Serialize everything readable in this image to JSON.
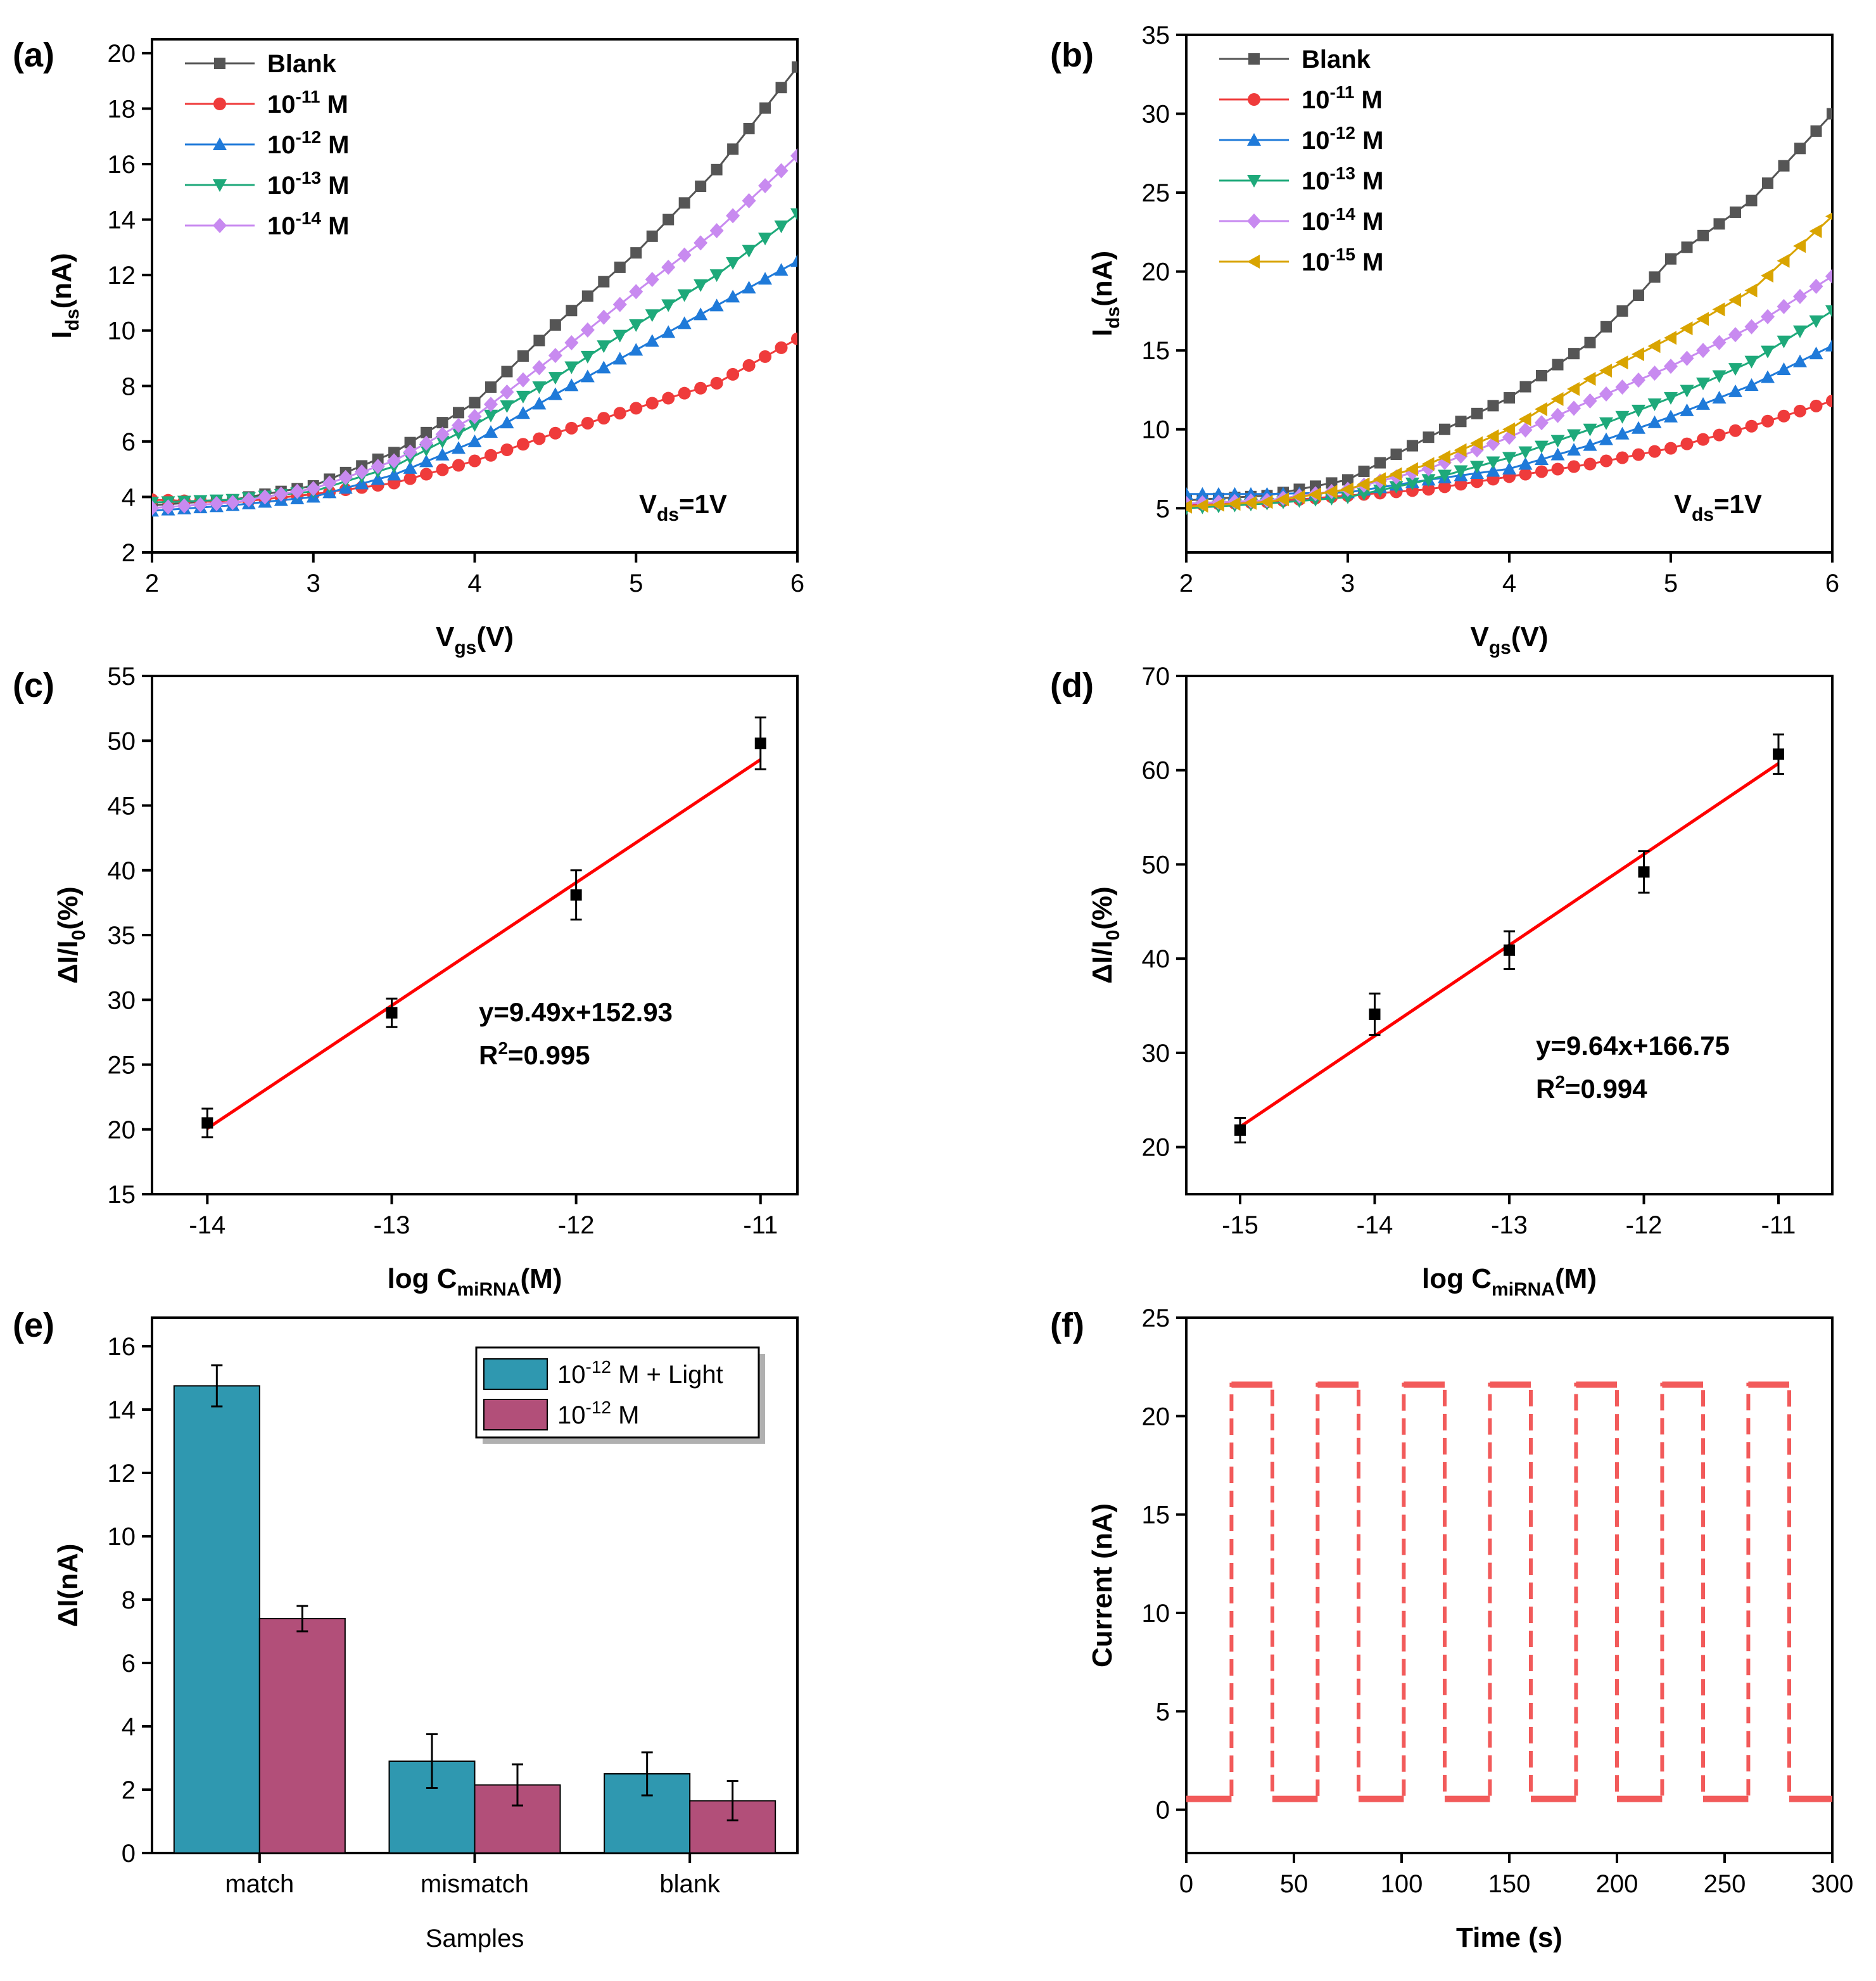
{
  "colors": {
    "blank": "#555555",
    "m11": "#ef3b3b",
    "m12": "#1f7ad9",
    "m13": "#1ea97a",
    "m14": "#c88af0",
    "m15": "#d9a400",
    "fit": "#ff0000",
    "bar_light": "#2f98b0",
    "bar_dark": "#b24f79",
    "marker": "#000000",
    "switch": "#f25a5a"
  },
  "chart_data": [
    {
      "panel": "(a)",
      "type": "line",
      "xlabel_main": "V",
      "xlabel_sub": "gs",
      "xlabel_unit": "(V)",
      "ylabel_main": "I",
      "ylabel_sub": "ds",
      "ylabel_unit": "(nA)",
      "xlim": [
        2,
        6
      ],
      "ylim": [
        2,
        20.5
      ],
      "xticks": [
        2,
        3,
        4,
        5,
        6
      ],
      "yticks": [
        2,
        4,
        6,
        8,
        10,
        12,
        14,
        16,
        18,
        20
      ],
      "annotation_main": "V",
      "annotation_sub": "ds",
      "annotation_tail": "=1V",
      "series": [
        {
          "key": "blank",
          "legend_base": "Blank",
          "legend_exp": "",
          "legend_tail": "",
          "marker": "square",
          "points": [
            [
              2,
              3.7
            ],
            [
              2.5,
              3.9
            ],
            [
              3,
              4.4
            ],
            [
              3.5,
              5.6
            ],
            [
              4,
              7.4
            ],
            [
              4.5,
              10.2
            ],
            [
              5,
              12.8
            ],
            [
              5.5,
              15.8
            ],
            [
              6,
              19.5
            ]
          ]
        },
        {
          "key": "m11",
          "legend_base": "10",
          "legend_exp": "-11",
          "legend_tail": " M",
          "marker": "circle",
          "points": [
            [
              2,
              3.9
            ],
            [
              2.5,
              3.8
            ],
            [
              3,
              4.1
            ],
            [
              3.5,
              4.5
            ],
            [
              4,
              5.3
            ],
            [
              4.5,
              6.3
            ],
            [
              5,
              7.2
            ],
            [
              5.5,
              8.1
            ],
            [
              6,
              9.7
            ]
          ]
        },
        {
          "key": "m12",
          "legend_base": "10",
          "legend_exp": "-12",
          "legend_tail": " M",
          "marker": "triangle-up",
          "points": [
            [
              2,
              3.5
            ],
            [
              2.5,
              3.7
            ],
            [
              3,
              4.0
            ],
            [
              3.5,
              4.8
            ],
            [
              4,
              6.0
            ],
            [
              4.5,
              7.7
            ],
            [
              5,
              9.3
            ],
            [
              5.5,
              10.9
            ],
            [
              6,
              12.5
            ]
          ]
        },
        {
          "key": "m13",
          "legend_base": "10",
          "legend_exp": "-13",
          "legend_tail": " M",
          "marker": "triangle-down",
          "points": [
            [
              2,
              3.8
            ],
            [
              2.5,
              3.9
            ],
            [
              3,
              4.2
            ],
            [
              3.5,
              5.1
            ],
            [
              4,
              6.6
            ],
            [
              4.5,
              8.3
            ],
            [
              5,
              10.2
            ],
            [
              5.5,
              12.0
            ],
            [
              6,
              14.2
            ]
          ]
        },
        {
          "key": "m14",
          "legend_base": "10",
          "legend_exp": "-14",
          "legend_tail": " M",
          "marker": "diamond",
          "points": [
            [
              2,
              3.6
            ],
            [
              2.5,
              3.8
            ],
            [
              3,
              4.3
            ],
            [
              3.5,
              5.3
            ],
            [
              4,
              6.9
            ],
            [
              4.5,
              9.1
            ],
            [
              5,
              11.4
            ],
            [
              5.5,
              13.6
            ],
            [
              6,
              16.3
            ]
          ]
        }
      ]
    },
    {
      "panel": "(b)",
      "type": "line",
      "xlabel_main": "V",
      "xlabel_sub": "gs",
      "xlabel_unit": "(V)",
      "ylabel_main": "I",
      "ylabel_sub": "ds",
      "ylabel_unit": "(nA)",
      "xlim": [
        2,
        6
      ],
      "ylim": [
        2.2,
        35
      ],
      "xticks": [
        2,
        3,
        4,
        5,
        6
      ],
      "yticks": [
        5,
        10,
        15,
        20,
        25,
        30,
        35
      ],
      "annotation_main": "V",
      "annotation_sub": "ds",
      "annotation_tail": "=1V",
      "series": [
        {
          "key": "blank",
          "legend_base": "Blank",
          "legend_exp": "",
          "legend_tail": "",
          "marker": "square",
          "points": [
            [
              2,
              5.5
            ],
            [
              2.5,
              5.8
            ],
            [
              3,
              6.8
            ],
            [
              3.5,
              9.5
            ],
            [
              4,
              12.0
            ],
            [
              4.5,
              15.5
            ],
            [
              4.8,
              18.5
            ],
            [
              5,
              20.8
            ],
            [
              5.5,
              24.5
            ],
            [
              6,
              30.0
            ]
          ]
        },
        {
          "key": "m11",
          "legend_base": "10",
          "legend_exp": "-11",
          "legend_tail": " M",
          "marker": "circle",
          "points": [
            [
              2,
              5.2
            ],
            [
              2.5,
              5.4
            ],
            [
              3,
              5.8
            ],
            [
              3.5,
              6.2
            ],
            [
              4,
              7.0
            ],
            [
              4.5,
              7.8
            ],
            [
              5,
              8.8
            ],
            [
              5.5,
              10.2
            ],
            [
              6,
              11.8
            ]
          ]
        },
        {
          "key": "m12",
          "legend_base": "10",
          "legend_exp": "-12",
          "legend_tail": " M",
          "marker": "triangle-up",
          "points": [
            [
              2,
              5.9
            ],
            [
              2.5,
              5.9
            ],
            [
              3,
              6.0
            ],
            [
              3.5,
              6.8
            ],
            [
              4,
              7.5
            ],
            [
              4.5,
              9.0
            ],
            [
              5,
              10.8
            ],
            [
              5.5,
              12.8
            ],
            [
              6,
              15.3
            ]
          ]
        },
        {
          "key": "m13",
          "legend_base": "10",
          "legend_exp": "-13",
          "legend_tail": " M",
          "marker": "triangle-down",
          "points": [
            [
              2,
              5.0
            ],
            [
              2.5,
              5.3
            ],
            [
              3,
              5.7
            ],
            [
              3.5,
              6.8
            ],
            [
              4,
              8.2
            ],
            [
              4.5,
              10.0
            ],
            [
              5,
              12.0
            ],
            [
              5.5,
              14.3
            ],
            [
              6,
              17.5
            ]
          ]
        },
        {
          "key": "m14",
          "legend_base": "10",
          "legend_exp": "-14",
          "legend_tail": " M",
          "marker": "diamond",
          "points": [
            [
              2,
              5.3
            ],
            [
              2.5,
              5.5
            ],
            [
              3,
              6.2
            ],
            [
              3.5,
              7.5
            ],
            [
              4,
              9.5
            ],
            [
              4.5,
              11.8
            ],
            [
              5,
              14.0
            ],
            [
              5.5,
              16.5
            ],
            [
              6,
              19.7
            ]
          ]
        },
        {
          "key": "m15",
          "legend_base": "10",
          "legend_exp": "-15",
          "legend_tail": " M",
          "marker": "triangle-left",
          "points": [
            [
              2,
              5.1
            ],
            [
              2.5,
              5.4
            ],
            [
              3,
              6.2
            ],
            [
              3.5,
              7.8
            ],
            [
              4,
              10.0
            ],
            [
              4.5,
              13.2
            ],
            [
              5,
              15.8
            ],
            [
              5.5,
              18.8
            ],
            [
              6,
              23.5
            ]
          ]
        }
      ]
    },
    {
      "panel": "(c)",
      "type": "scatter",
      "xlabel_main": "log C",
      "xlabel_sub": "miRNA",
      "xlabel_unit": "(M)",
      "ylabel_main": "ΔI/I",
      "ylabel_sub": "0",
      "ylabel_unit": "(%)",
      "xlim": [
        -14.3,
        -10.8
      ],
      "ylim": [
        15,
        55
      ],
      "xticks": [
        -14,
        -13,
        -12,
        -11
      ],
      "yticks": [
        15,
        20,
        25,
        30,
        35,
        40,
        45,
        50,
        55
      ],
      "x": [
        -14,
        -13,
        -12,
        -11
      ],
      "y": [
        20.5,
        29.0,
        38.1,
        49.8
      ],
      "err": [
        1.1,
        1.1,
        1.9,
        2.0
      ],
      "fit": {
        "slope": 9.49,
        "intercept": 152.93
      },
      "equation": "y=9.49x+152.93",
      "r2_prefix": "R",
      "r2_exp": "2",
      "r2_value": "=0.995"
    },
    {
      "panel": "(d)",
      "type": "scatter",
      "xlabel_main": "log C",
      "xlabel_sub": "miRNA",
      "xlabel_unit": "(M)",
      "ylabel_main": "ΔI/I",
      "ylabel_sub": "0",
      "ylabel_unit": "(%)",
      "xlim": [
        -15.4,
        -10.6
      ],
      "ylim": [
        15,
        70
      ],
      "xticks": [
        -15,
        -14,
        -13,
        -12,
        -11
      ],
      "yticks": [
        20,
        30,
        40,
        50,
        60,
        70
      ],
      "x": [
        -15,
        -14,
        -13,
        -12,
        -11
      ],
      "y": [
        21.8,
        34.1,
        40.9,
        49.2,
        61.7
      ],
      "err": [
        1.3,
        2.2,
        2.0,
        2.2,
        2.1
      ],
      "fit": {
        "slope": 9.64,
        "intercept": 166.75
      },
      "equation": "y=9.64x+166.75",
      "r2_prefix": "R",
      "r2_exp": "2",
      "r2_value": "=0.994"
    },
    {
      "panel": "(e)",
      "type": "bar",
      "xlabel": "Samples",
      "ylabel": "ΔI(nA)",
      "ylim": [
        0,
        16.9
      ],
      "yticks": [
        0,
        2,
        4,
        6,
        8,
        10,
        12,
        14,
        16
      ],
      "categories": [
        "match",
        "mismatch",
        "blank"
      ],
      "series": [
        {
          "key": "bar_light",
          "legend_base": "10",
          "legend_exp": "-12",
          "legend_tail": " M + Light",
          "values": [
            14.75,
            2.9,
            2.5
          ],
          "err": [
            0.65,
            0.85,
            0.68
          ]
        },
        {
          "key": "bar_dark",
          "legend_base": "10",
          "legend_exp": "-12",
          "legend_tail": " M",
          "values": [
            7.4,
            2.15,
            1.65
          ],
          "err": [
            0.4,
            0.65,
            0.62
          ]
        }
      ]
    },
    {
      "panel": "(f)",
      "type": "line",
      "xlabel": "Time (s)",
      "ylabel": "Current (nA)",
      "xlim": [
        0,
        300
      ],
      "ylim": [
        -2.2,
        25
      ],
      "xticks": [
        0,
        50,
        100,
        150,
        200,
        250,
        300
      ],
      "yticks": [
        0,
        5,
        10,
        15,
        20,
        25
      ],
      "low": 0.55,
      "high": 21.6,
      "on_intervals": [
        [
          21,
          40
        ],
        [
          61,
          80
        ],
        [
          101,
          120
        ],
        [
          141,
          160
        ],
        [
          181,
          200
        ],
        [
          221,
          240
        ],
        [
          261,
          280
        ]
      ]
    }
  ]
}
